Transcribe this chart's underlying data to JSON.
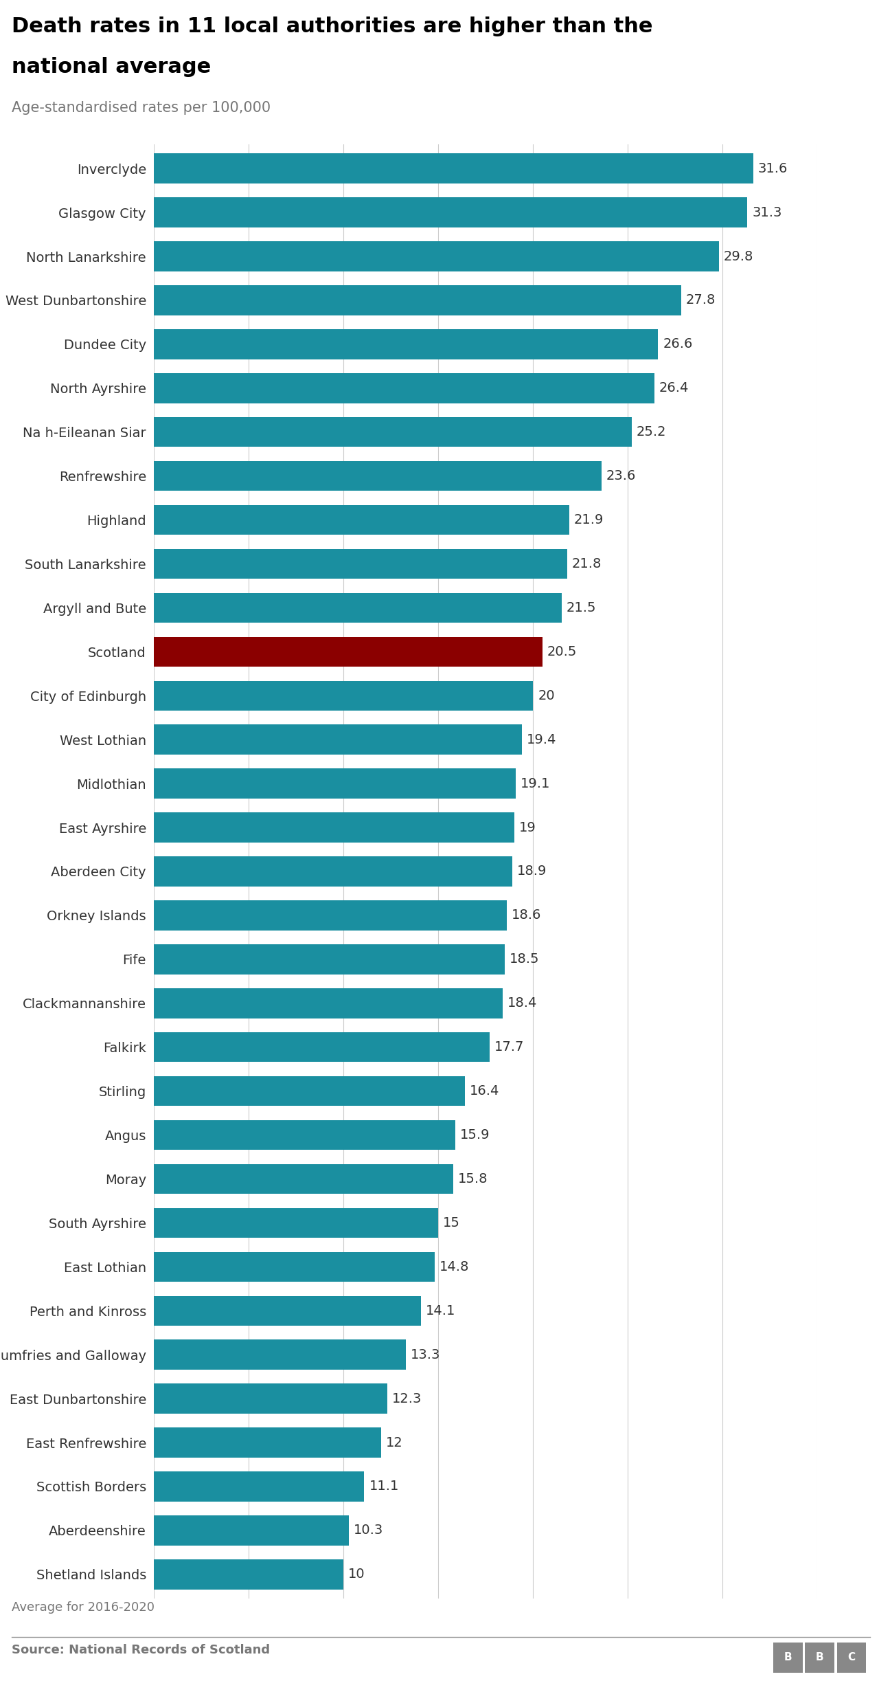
{
  "title_line1": "Death rates in 11 local authorities are higher than the",
  "title_line2": "national average",
  "subtitle": "Age-standardised rates per 100,000",
  "footnote": "Average for 2016-2020",
  "source": "Source: National Records of Scotland",
  "categories": [
    "Inverclyde",
    "Glasgow City",
    "North Lanarkshire",
    "West Dunbartonshire",
    "Dundee City",
    "North Ayrshire",
    "Na h-Eileanan Siar",
    "Renfrewshire",
    "Highland",
    "South Lanarkshire",
    "Argyll and Bute",
    "Scotland",
    "City of Edinburgh",
    "West Lothian",
    "Midlothian",
    "East Ayrshire",
    "Aberdeen City",
    "Orkney Islands",
    "Fife",
    "Clackmannanshire",
    "Falkirk",
    "Stirling",
    "Angus",
    "Moray",
    "South Ayrshire",
    "East Lothian",
    "Perth and Kinross",
    "Dumfries and Galloway",
    "East Dunbartonshire",
    "East Renfrewshire",
    "Scottish Borders",
    "Aberdeenshire",
    "Shetland Islands"
  ],
  "values": [
    31.6,
    31.3,
    29.8,
    27.8,
    26.6,
    26.4,
    25.2,
    23.6,
    21.9,
    21.8,
    21.5,
    20.5,
    20.0,
    19.4,
    19.1,
    19.0,
    18.9,
    18.6,
    18.5,
    18.4,
    17.7,
    16.4,
    15.9,
    15.8,
    15.0,
    14.8,
    14.1,
    13.3,
    12.3,
    12.0,
    11.1,
    10.3,
    10.0
  ],
  "bar_color_default": "#1a8fa0",
  "bar_color_highlight": "#8b0000",
  "highlight_index": 11,
  "background_color": "#ffffff",
  "text_color_title": "#000000",
  "text_color_subtitle": "#777777",
  "text_color_footnote": "#777777",
  "text_color_source": "#777777",
  "label_color": "#333333",
  "grid_color": "#cccccc",
  "xlim": [
    0,
    35
  ],
  "bar_height": 0.68,
  "title_fontsize": 22,
  "subtitle_fontsize": 15,
  "label_fontsize": 14,
  "ytick_fontsize": 14,
  "footer_fontsize": 13
}
